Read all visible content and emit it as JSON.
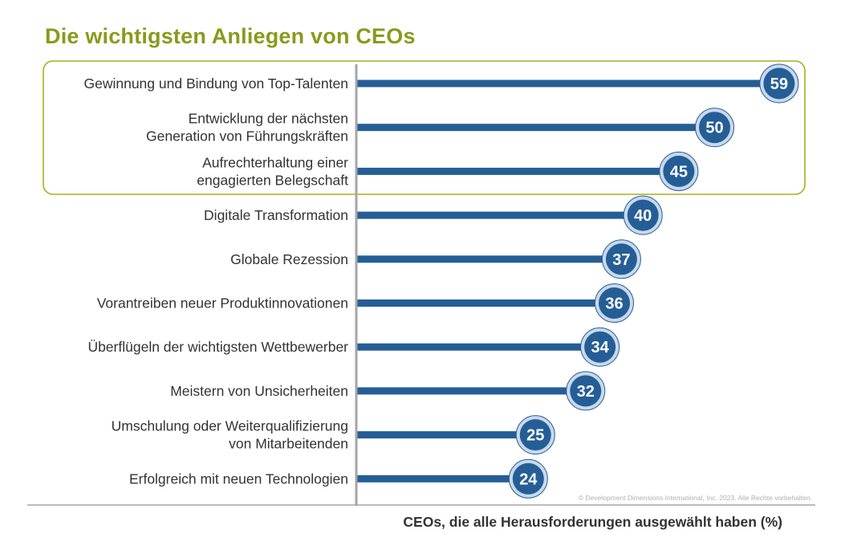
{
  "title": "Die wichtigsten Anliegen von CEOs",
  "colors": {
    "title": "#8a9a1b",
    "highlight_border": "#a6b01e",
    "bar": "#255e96",
    "badge_fill": "#255e96",
    "badge_ring": "#c9d9ec",
    "axis": "#a6a6a6"
  },
  "chart_data": {
    "type": "bar",
    "orientation": "horizontal",
    "categories": [
      [
        "Gewinnung und Bindung von Top-Talenten"
      ],
      [
        "Entwicklung der nächsten",
        "Generation von Führungskräften"
      ],
      [
        "Aufrechterhaltung einer",
        "engagierten Belegschaft"
      ],
      [
        "Digitale Transformation"
      ],
      [
        "Globale Rezession"
      ],
      [
        "Vorantreiben neuer Produktinnovationen"
      ],
      [
        "Überflügeln der wichtigsten Wettbewerber"
      ],
      [
        "Meistern von Unsicherheiten"
      ],
      [
        "Umschulung oder Weiterqualifizierung",
        "von Mitarbeitenden"
      ],
      [
        "Erfolgreich mit neuen Technologien"
      ]
    ],
    "values": [
      59,
      50,
      45,
      40,
      37,
      36,
      34,
      32,
      25,
      24
    ],
    "highlighted_categories": [
      0,
      1,
      2
    ],
    "xlabel": "CEOs, die alle Herausforderungen ausgewählt haben (%)",
    "ylabel": "",
    "xlim": [
      0,
      64
    ],
    "grid": false,
    "legend": "none",
    "data_labels": "circle badge at bar end"
  },
  "footer": {
    "copyright": "© Development Dimensions International, Inc. 2023. Alle Rechte vorbehalten."
  }
}
